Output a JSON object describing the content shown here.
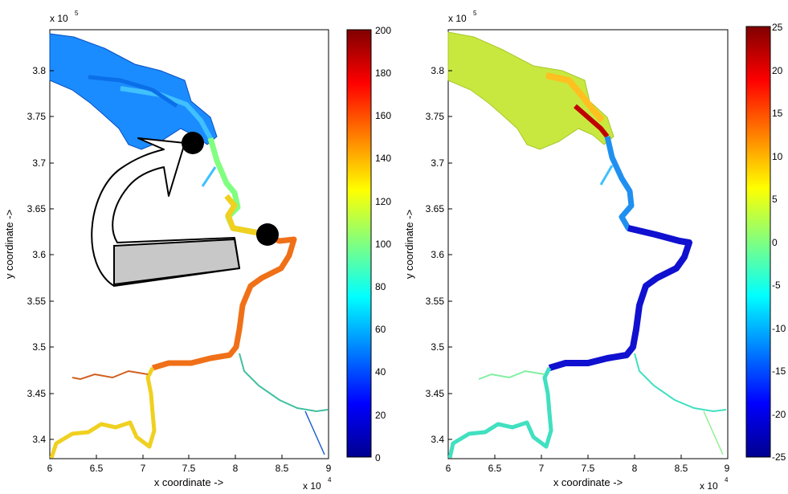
{
  "panels": [
    {
      "id": "left",
      "xlabel": "x coordinate ->",
      "ylabel": "y coordinate ->",
      "x_ticks": [
        "6",
        "6.5",
        "7",
        "7.5",
        "8",
        "8.5",
        "9"
      ],
      "y_ticks": [
        "3.8",
        "3.75",
        "3.7",
        "3.65",
        "3.6",
        "3.55",
        "3.5",
        "3.45",
        "3.4"
      ],
      "x_multiplier": "x 10",
      "x_multiplier_exp": "4",
      "y_multiplier": "x 10",
      "y_multiplier_exp": "5",
      "colorbar_ticks": [
        "200",
        "180",
        "160",
        "140",
        "120",
        "100",
        "80",
        "60",
        "40",
        "20",
        "0"
      ],
      "colormap": "jet"
    },
    {
      "id": "right",
      "xlabel": "x coordinate ->",
      "ylabel": "y coordinate ->",
      "x_ticks": [
        "6",
        "6.5",
        "7",
        "7.5",
        "8",
        "8.5",
        "9"
      ],
      "y_ticks": [
        "3.8",
        "3.75",
        "3.7",
        "3.65",
        "3.6",
        "3.55",
        "3.5",
        "3.45",
        "3.4"
      ],
      "x_multiplier": "x 10",
      "x_multiplier_exp": "4",
      "y_multiplier": "x 10",
      "y_multiplier_exp": "5",
      "colorbar_ticks": [
        "25",
        "20",
        "15",
        "10",
        "5",
        "0",
        "-5",
        "-10",
        "-15",
        "-20",
        "-25"
      ],
      "colormap": "jet"
    }
  ],
  "colors": {
    "estuary_left": "#1a8cff",
    "river_left_upper": "#f0c020",
    "river_left_lower": "#f07018",
    "estuary_right": "#c8e840",
    "river_right": "#1010d0",
    "tributaries_right": "#40e0c0"
  },
  "annotations": {
    "markers": [
      "station-marker-upper",
      "station-marker-lower"
    ],
    "arrow": "curved-flow-arrow"
  }
}
